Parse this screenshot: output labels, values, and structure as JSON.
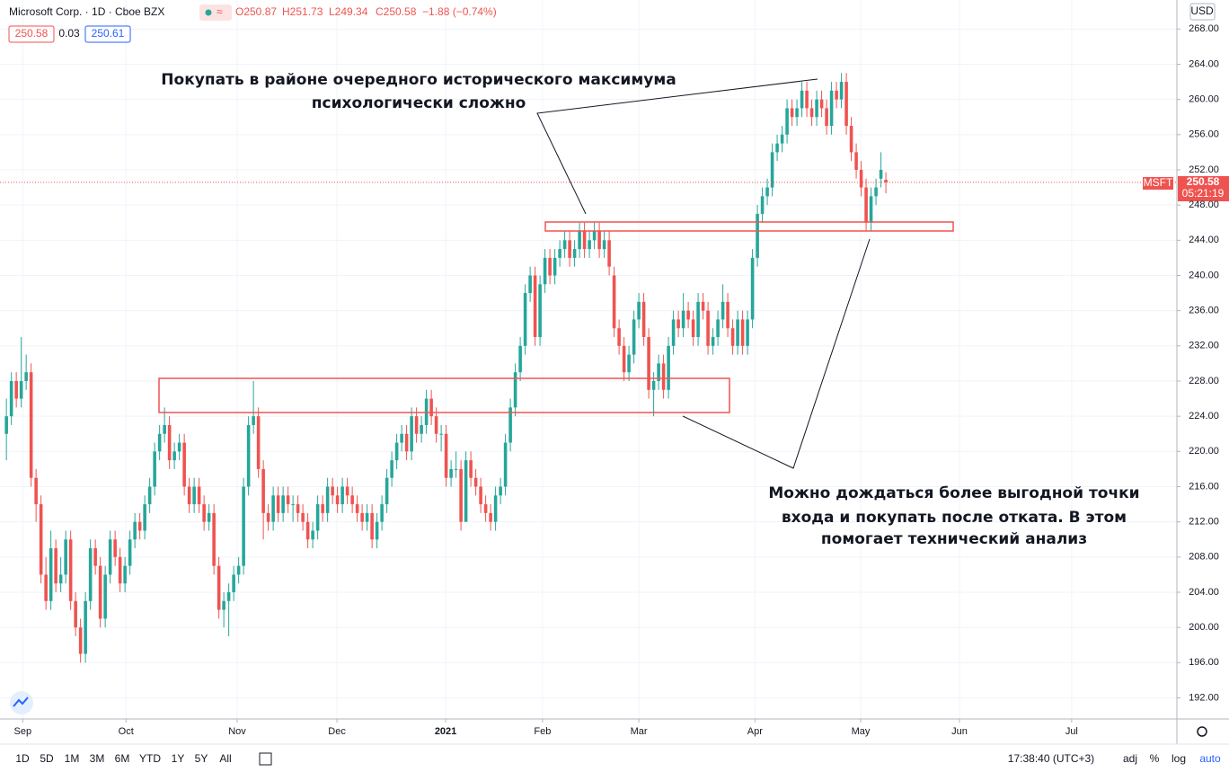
{
  "header": {
    "symbol": "Microsoft Corp. · 1D · Cboe BZX",
    "ohlc": [
      "O250.87",
      "H251.73",
      "L249.34",
      "C250.58"
    ],
    "change": "−1.88 (−0.74%)",
    "bid": "250.58",
    "spread": "0.03",
    "ask": "250.61",
    "currency": "USD"
  },
  "price_tag": {
    "ticker": "MSFT",
    "price": "250.58",
    "countdown": "05:21:19"
  },
  "annotations": [
    "Покупать в районе очередного исторического максимума",
    "психологически сложно",
    "Можно дождаться более выгодной точки",
    "входа и покупать после отката. В этом",
    "помогает технический анализ"
  ],
  "toolbar": {
    "ranges": [
      "1D",
      "5D",
      "1M",
      "3M",
      "6M",
      "YTD",
      "1Y",
      "5Y",
      "All"
    ],
    "clock": "17:38:40 (UTC+3)",
    "options": [
      "adj",
      "%",
      "log",
      "auto"
    ]
  },
  "chart_data": {
    "type": "candlestick",
    "up_color": "#26a69a",
    "down_color": "#ef5350",
    "grid": true,
    "xlim": [
      -1.3,
      236.9
    ],
    "xticks": [
      {
        "value": 3.3,
        "label": "Sep"
      },
      {
        "value": 24.2,
        "label": "Oct"
      },
      {
        "value": 46.7,
        "label": "Nov"
      },
      {
        "value": 66.9,
        "label": "Dec"
      },
      {
        "value": 88.9,
        "label": "2021"
      },
      {
        "value": 108.5,
        "label": "Feb"
      },
      {
        "value": 128,
        "label": "Mar"
      },
      {
        "value": 151.5,
        "label": "Apr"
      },
      {
        "value": 172.9,
        "label": "May"
      },
      {
        "value": 192.9,
        "label": "Jun"
      },
      {
        "value": 215.6,
        "label": "Jul"
      }
    ],
    "ylim": [
      189.6,
      271.3
    ],
    "yticks": [
      {
        "value": 192,
        "label": "192.00"
      },
      {
        "value": 196,
        "label": "196.00"
      },
      {
        "value": 200,
        "label": "200.00"
      },
      {
        "value": 204,
        "label": "204.00"
      },
      {
        "value": 208,
        "label": "208.00"
      },
      {
        "value": 212,
        "label": "212.00"
      },
      {
        "value": 216,
        "label": "216.00"
      },
      {
        "value": 220,
        "label": "220.00"
      },
      {
        "value": 224,
        "label": "224.00"
      },
      {
        "value": 228,
        "label": "228.00"
      },
      {
        "value": 232,
        "label": "232.00"
      },
      {
        "value": 236,
        "label": "236.00"
      },
      {
        "value": 240,
        "label": "240.00"
      },
      {
        "value": 244,
        "label": "244.00"
      },
      {
        "value": 248,
        "label": "248.00"
      },
      {
        "value": 252,
        "label": "252.00"
      },
      {
        "value": 256,
        "label": "256.00"
      },
      {
        "value": 260,
        "label": "260.00"
      },
      {
        "value": 264,
        "label": "264.00"
      },
      {
        "value": 268,
        "label": "268.00"
      }
    ],
    "candles": [
      [
        222,
        226,
        219,
        224
      ],
      [
        224,
        229,
        223,
        228
      ],
      [
        228,
        229,
        225,
        226
      ],
      [
        226,
        233,
        225,
        228
      ],
      [
        228,
        231,
        227,
        229
      ],
      [
        229,
        230,
        216,
        217
      ],
      [
        217,
        218,
        212,
        214
      ],
      [
        214,
        215,
        205,
        206
      ],
      [
        206,
        208,
        202,
        203
      ],
      [
        203,
        211,
        202,
        209
      ],
      [
        209,
        210,
        204,
        205
      ],
      [
        205,
        208,
        204,
        206
      ],
      [
        206,
        211,
        205,
        210
      ],
      [
        210,
        211,
        202,
        203
      ],
      [
        203,
        204,
        199,
        200
      ],
      [
        200,
        201,
        196,
        197
      ],
      [
        197,
        204,
        196,
        203
      ],
      [
        203,
        210,
        202,
        209
      ],
      [
        209,
        210,
        206,
        207
      ],
      [
        207,
        208,
        200,
        201
      ],
      [
        201,
        207,
        200,
        206
      ],
      [
        206,
        211,
        205,
        210
      ],
      [
        210,
        211,
        207,
        208
      ],
      [
        208,
        209,
        204,
        205
      ],
      [
        205,
        208,
        204,
        207
      ],
      [
        207,
        211,
        206,
        210
      ],
      [
        210,
        213,
        209,
        212
      ],
      [
        212,
        213,
        210,
        211
      ],
      [
        211,
        215,
        210,
        214
      ],
      [
        214,
        217,
        213,
        216
      ],
      [
        216,
        221,
        215,
        220
      ],
      [
        220,
        223,
        219,
        222
      ],
      [
        222,
        225,
        221,
        223
      ],
      [
        223,
        224,
        218,
        219
      ],
      [
        219,
        221,
        218,
        220
      ],
      [
        220,
        222,
        219,
        221
      ],
      [
        221,
        222,
        215,
        216
      ],
      [
        216,
        217,
        213,
        214
      ],
      [
        214,
        217,
        213,
        216
      ],
      [
        216,
        217,
        213,
        214
      ],
      [
        214,
        215,
        211,
        212
      ],
      [
        212,
        214,
        211,
        213
      ],
      [
        213,
        214,
        206,
        207
      ],
      [
        207,
        208,
        201,
        202
      ],
      [
        202,
        204,
        200,
        203
      ],
      [
        203,
        205,
        199,
        204
      ],
      [
        204,
        207,
        203,
        206
      ],
      [
        206,
        208,
        205,
        207
      ],
      [
        207,
        217,
        206,
        216
      ],
      [
        216,
        224,
        215,
        223
      ],
      [
        223,
        228,
        222,
        224
      ],
      [
        224,
        225,
        217,
        218
      ],
      [
        218,
        219,
        210,
        213
      ],
      [
        213,
        214,
        211,
        212
      ],
      [
        212,
        216,
        211,
        215
      ],
      [
        215,
        216,
        212,
        213
      ],
      [
        213,
        216,
        212,
        215
      ],
      [
        215,
        216,
        213,
        214
      ],
      [
        214,
        215,
        212,
        214
      ],
      [
        214,
        215,
        212,
        213
      ],
      [
        213,
        214,
        211,
        212
      ],
      [
        212,
        213,
        209,
        210
      ],
      [
        210,
        212,
        209,
        211
      ],
      [
        211,
        215,
        210,
        214
      ],
      [
        214,
        215,
        212,
        213
      ],
      [
        213,
        217,
        212,
        216
      ],
      [
        216,
        217,
        214,
        215
      ],
      [
        215,
        216,
        213,
        214
      ],
      [
        214,
        217,
        213,
        216
      ],
      [
        216,
        217,
        214,
        215
      ],
      [
        215,
        216,
        213,
        214
      ],
      [
        214,
        215,
        212,
        213
      ],
      [
        213,
        214,
        211,
        212
      ],
      [
        212,
        214,
        211,
        213
      ],
      [
        213,
        214,
        209,
        210
      ],
      [
        210,
        213,
        209,
        212
      ],
      [
        212,
        215,
        211,
        214
      ],
      [
        214,
        218,
        213,
        217
      ],
      [
        217,
        220,
        216,
        219
      ],
      [
        219,
        222,
        218,
        221
      ],
      [
        221,
        223,
        220,
        222
      ],
      [
        222,
        223,
        219,
        220
      ],
      [
        220,
        225,
        219,
        224
      ],
      [
        224,
        225,
        221,
        222
      ],
      [
        222,
        224,
        221,
        223
      ],
      [
        223,
        227,
        222,
        226
      ],
      [
        226,
        227,
        223,
        224
      ],
      [
        224,
        225,
        221,
        222
      ],
      [
        222,
        223,
        220,
        222
      ],
      [
        222,
        223,
        216,
        217
      ],
      [
        217,
        219,
        216,
        218
      ],
      [
        218,
        220,
        217,
        218
      ],
      [
        218,
        219,
        211,
        212
      ],
      [
        212,
        220,
        212,
        219
      ],
      [
        219,
        220,
        216,
        217
      ],
      [
        217,
        218,
        215,
        216
      ],
      [
        216,
        217,
        213,
        214
      ],
      [
        214,
        215,
        212,
        213
      ],
      [
        213,
        214,
        211,
        212
      ],
      [
        212,
        216,
        211,
        215
      ],
      [
        215,
        217,
        214,
        216
      ],
      [
        216,
        222,
        215,
        221
      ],
      [
        221,
        226,
        220,
        225
      ],
      [
        225,
        230,
        224,
        229
      ],
      [
        229,
        233,
        228,
        232
      ],
      [
        232,
        239,
        231,
        238
      ],
      [
        238,
        241,
        237,
        240
      ],
      [
        240,
        241,
        232,
        233
      ],
      [
        233,
        240,
        232,
        239
      ],
      [
        239,
        243,
        238,
        242
      ],
      [
        242,
        243,
        239,
        240
      ],
      [
        240,
        243,
        239,
        242
      ],
      [
        242,
        244,
        241,
        243
      ],
      [
        243,
        245,
        242,
        244
      ],
      [
        244,
        245,
        241,
        242
      ],
      [
        242,
        244,
        241,
        243
      ],
      [
        243,
        246,
        242,
        245
      ],
      [
        245,
        246,
        242,
        243
      ],
      [
        243,
        245,
        242,
        244
      ],
      [
        244,
        246,
        243,
        245
      ],
      [
        245,
        246,
        242,
        243
      ],
      [
        243,
        245,
        242,
        244
      ],
      [
        244,
        245,
        240,
        241
      ],
      [
        240,
        241,
        233,
        234
      ],
      [
        234,
        235,
        231,
        232
      ],
      [
        232,
        233,
        228,
        229
      ],
      [
        229,
        232,
        228,
        231
      ],
      [
        231,
        236,
        230,
        235
      ],
      [
        235,
        238,
        234,
        237
      ],
      [
        237,
        238,
        232,
        233
      ],
      [
        233,
        234,
        226,
        227
      ],
      [
        227,
        229,
        224,
        228
      ],
      [
        228,
        231,
        227,
        230
      ],
      [
        230,
        231,
        226,
        227
      ],
      [
        227,
        233,
        226,
        232
      ],
      [
        232,
        236,
        231,
        235
      ],
      [
        235,
        236,
        233,
        234
      ],
      [
        234,
        238,
        233,
        236
      ],
      [
        236,
        237,
        234,
        235
      ],
      [
        235,
        236,
        232,
        233
      ],
      [
        233,
        238,
        232,
        237
      ],
      [
        237,
        238,
        235,
        236
      ],
      [
        236,
        237,
        231,
        232
      ],
      [
        232,
        234,
        231,
        233
      ],
      [
        233,
        236,
        232,
        235
      ],
      [
        235,
        239,
        234,
        237
      ],
      [
        237,
        238,
        233,
        234
      ],
      [
        234,
        235,
        231,
        232
      ],
      [
        232,
        236,
        231,
        235
      ],
      [
        235,
        236,
        231,
        232
      ],
      [
        232,
        236,
        231,
        235
      ],
      [
        235,
        243,
        234,
        242
      ],
      [
        242,
        248,
        241,
        247
      ],
      [
        247,
        250,
        246,
        249
      ],
      [
        249,
        251,
        248,
        250
      ],
      [
        250,
        255,
        249,
        254
      ],
      [
        254,
        256,
        253,
        255
      ],
      [
        255,
        257,
        254,
        256
      ],
      [
        256,
        260,
        255,
        259
      ],
      [
        259,
        260,
        257,
        258
      ],
      [
        258,
        260,
        257,
        259
      ],
      [
        259,
        262,
        258,
        261
      ],
      [
        261,
        262,
        258,
        259
      ],
      [
        259,
        260,
        257,
        258
      ],
      [
        258,
        261,
        257,
        260
      ],
      [
        260,
        261,
        258,
        259
      ],
      [
        259,
        260,
        256,
        257
      ],
      [
        257,
        262,
        256,
        261
      ],
      [
        261,
        262,
        259,
        260
      ],
      [
        260,
        263,
        259,
        262
      ],
      [
        262,
        263,
        256,
        257
      ],
      [
        257,
        258,
        253,
        254
      ],
      [
        254,
        255,
        251,
        252
      ],
      [
        252,
        253,
        249,
        250
      ],
      [
        250,
        251,
        245,
        246
      ],
      [
        246,
        250,
        245,
        249
      ],
      [
        249,
        251,
        248,
        250
      ],
      [
        251,
        254,
        250,
        252
      ],
      [
        250.87,
        251.73,
        249.34,
        250.58
      ]
    ]
  }
}
